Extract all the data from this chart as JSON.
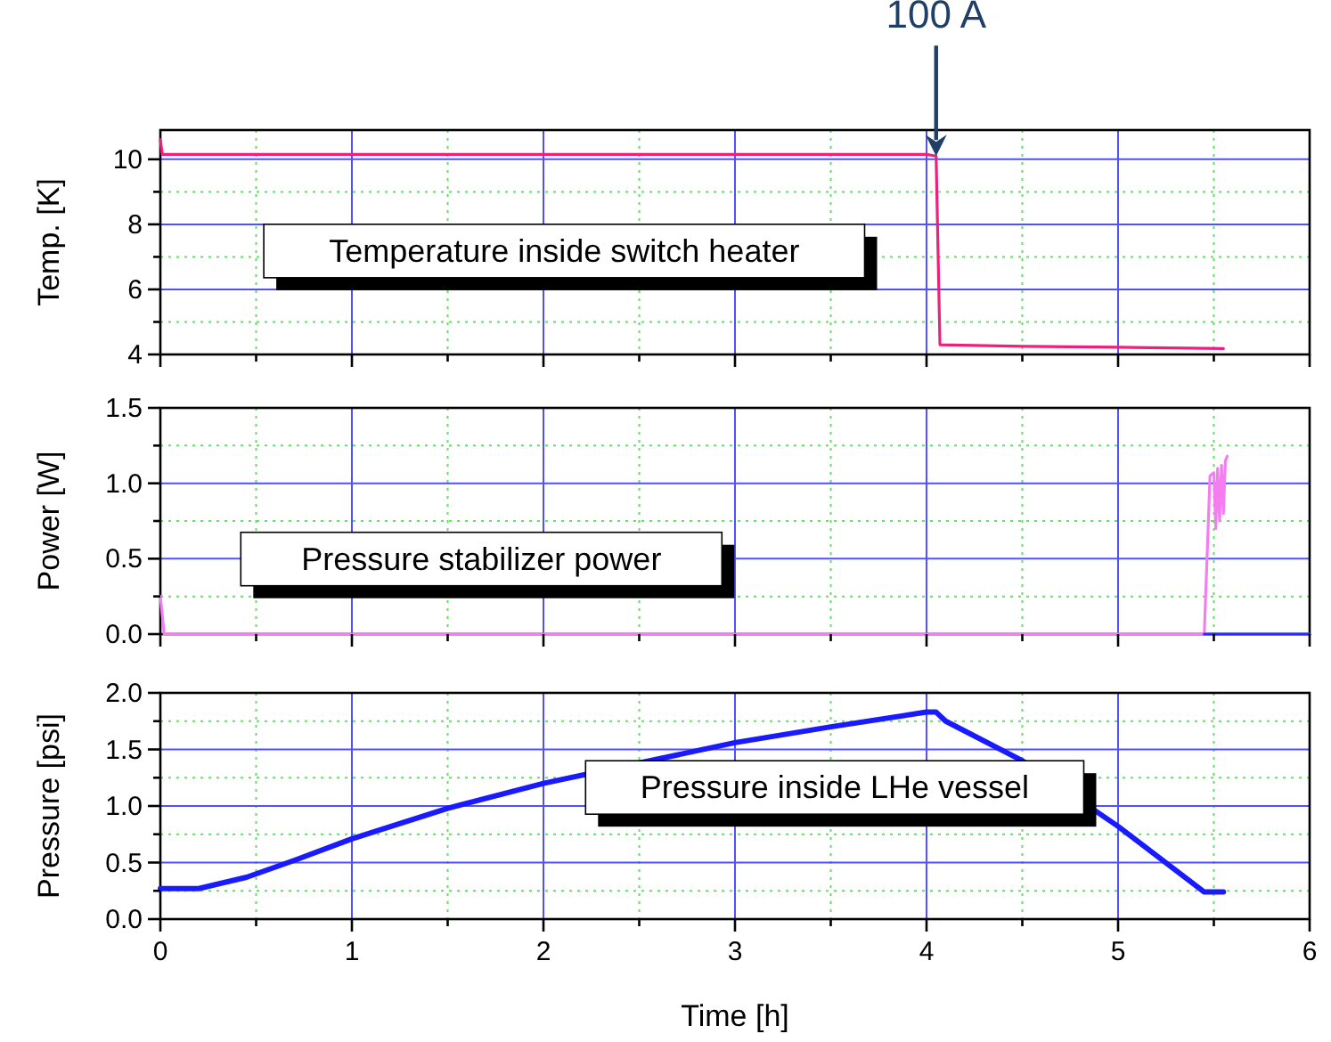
{
  "chart_data": [
    {
      "type": "line",
      "ylabel": "Temp. [K]",
      "xlim": [
        0,
        6
      ],
      "xticks": [
        0,
        {
          "value": 0.5,
          "label": null
        },
        1,
        {
          "value": 1.5,
          "label": null
        },
        2,
        {
          "value": 2.5,
          "label": null
        },
        3,
        {
          "value": 3.5,
          "label": null
        },
        4,
        {
          "value": 4.5,
          "label": null
        },
        5,
        {
          "value": 5.5,
          "label": null
        },
        6
      ],
      "ylim": [
        4,
        10.9
      ],
      "yticks": [
        4,
        {
          "value": 5,
          "label": null
        },
        6,
        {
          "value": 7,
          "label": null
        },
        8,
        {
          "value": 9,
          "label": null
        },
        10
      ],
      "tick_labels": "y",
      "grid": true,
      "line_style": "solid",
      "marker": "none",
      "annotations": [
        {
          "text": "100 A",
          "x": 4.05,
          "y": 10.1
        }
      ],
      "series": [
        {
          "name": "Temperature inside switch heater",
          "color": "#f0207a",
          "x": [
            0,
            0.01,
            0.5,
            1,
            2,
            3,
            4,
            4.05,
            4.07,
            4.5,
            5,
            5.55
          ],
          "values": [
            10.6,
            10.15,
            10.15,
            10.15,
            10.15,
            10.15,
            10.15,
            10.1,
            4.3,
            4.25,
            4.22,
            4.18
          ]
        }
      ]
    },
    {
      "type": "line",
      "ylabel": "Power [W]",
      "xlim": [
        0,
        6
      ],
      "xticks": [
        0,
        {
          "value": 0.5,
          "label": null
        },
        1,
        {
          "value": 1.5,
          "label": null
        },
        2,
        {
          "value": 2.5,
          "label": null
        },
        3,
        {
          "value": 3.5,
          "label": null
        },
        4,
        {
          "value": 4.5,
          "label": null
        },
        5,
        {
          "value": 5.5,
          "label": null
        },
        6
      ],
      "ylim": [
        0,
        1.5
      ],
      "yticks": [
        {
          "value": 0,
          "label": "0.0"
        },
        {
          "value": 0.25,
          "label": null
        },
        {
          "value": 0.5,
          "label": "0.5"
        },
        {
          "value": 0.75,
          "label": null
        },
        {
          "value": 1,
          "label": "1.0"
        },
        {
          "value": 1.25,
          "label": null
        },
        {
          "value": 1.5,
          "label": "1.5"
        }
      ],
      "tick_labels": "y",
      "grid": true,
      "line_style": "solid",
      "marker": "none",
      "series": [
        {
          "name": "Pressure stabilizer power",
          "color": "#f47ef0",
          "x": [
            0,
            0.02,
            5.45,
            5.48,
            5.5,
            5.51,
            5.52,
            5.53,
            5.54,
            5.55,
            5.56,
            5.57
          ],
          "values": [
            0.25,
            0,
            0,
            1.05,
            1.07,
            0.7,
            1.1,
            0.75,
            1.12,
            0.8,
            1.15,
            1.18
          ]
        },
        {
          "color": "#2a2aff",
          "x": [
            5.45,
            6
          ],
          "values": [
            0,
            0
          ]
        }
      ]
    },
    {
      "type": "line",
      "ylabel": "Pressure [psi]",
      "xlabel": "Time [h]",
      "xlim": [
        0,
        6
      ],
      "xticks": [
        0,
        {
          "value": 0.5,
          "label": null
        },
        1,
        {
          "value": 1.5,
          "label": null
        },
        2,
        {
          "value": 2.5,
          "label": null
        },
        3,
        {
          "value": 3.5,
          "label": null
        },
        4,
        {
          "value": 4.5,
          "label": null
        },
        5,
        {
          "value": 5.5,
          "label": null
        },
        6
      ],
      "ylim": [
        0,
        2
      ],
      "yticks": [
        {
          "value": 0,
          "label": "0.0"
        },
        {
          "value": 0.25,
          "label": null
        },
        {
          "value": 0.5,
          "label": "0.5"
        },
        {
          "value": 0.75,
          "label": null
        },
        {
          "value": 1,
          "label": "1.0"
        },
        {
          "value": 1.25,
          "label": null
        },
        {
          "value": 1.5,
          "label": "1.5"
        },
        {
          "value": 1.75,
          "label": null
        },
        {
          "value": 2,
          "label": "2.0"
        }
      ],
      "grid": true,
      "line_style": "solid",
      "marker": "none",
      "series": [
        {
          "name": "Pressure inside LHe vessel",
          "color": "#1a1aff",
          "x": [
            0,
            0.2,
            0.45,
            0.7,
            1,
            1.5,
            2,
            2.5,
            3,
            3.5,
            4,
            4.05,
            4.1,
            4.5,
            5,
            5.45,
            5.55
          ],
          "values": [
            0.27,
            0.27,
            0.37,
            0.52,
            0.71,
            0.98,
            1.2,
            1.38,
            1.56,
            1.7,
            1.83,
            1.83,
            1.75,
            1.4,
            0.82,
            0.24,
            0.24
          ]
        }
      ]
    }
  ]
}
